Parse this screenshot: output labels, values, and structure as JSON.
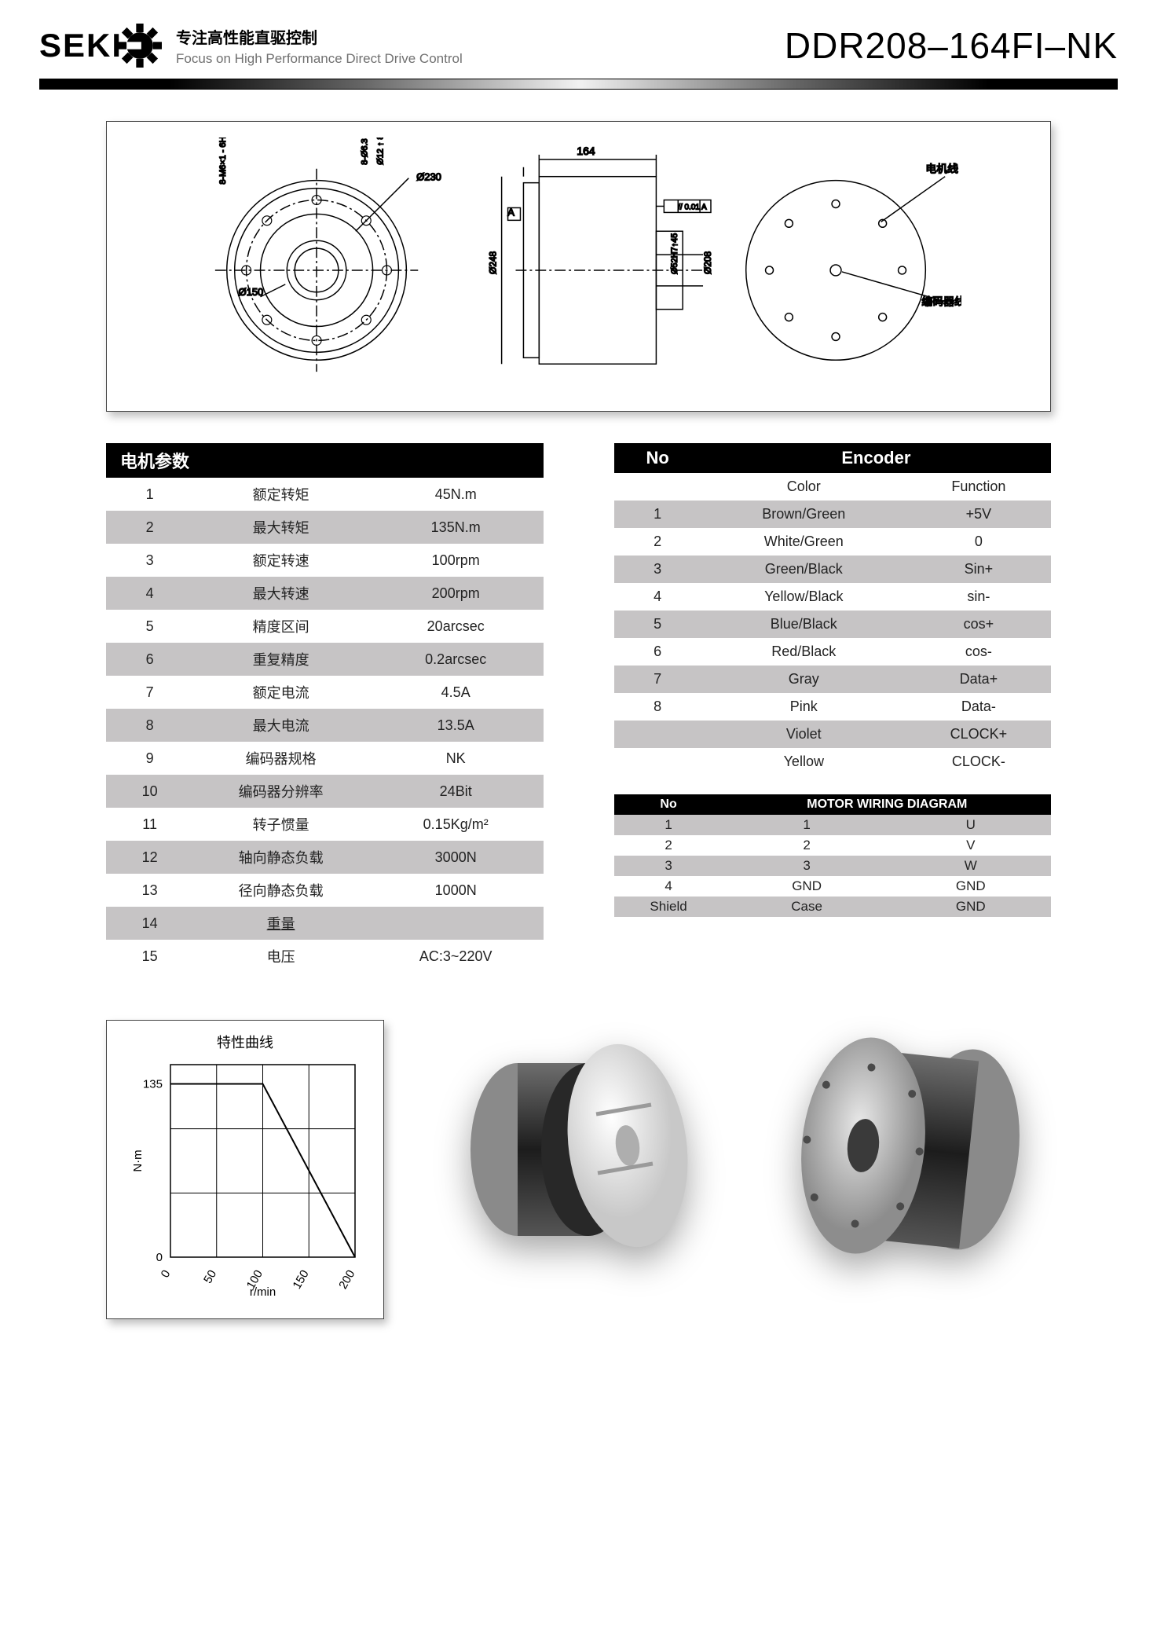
{
  "header": {
    "logo_text": "SEKI",
    "slogan_cn": "专注高性能直驱控制",
    "slogan_en": "Focus on High Performance Direct Drive Control",
    "model": "DDR208–164FI–NK"
  },
  "drawing": {
    "length_label": "164",
    "dia_outer_label": "Ø230",
    "dia_inner_label": "Ø150",
    "dia_body_label": "Ø248",
    "dia_side_label": "Ø208",
    "tol_label": "// 0.01 A",
    "datum": "A",
    "bolt_note": "8-M6×1 - 6H↑17.1",
    "hole_note": "8-Ø6.3 通孔",
    "shaft_note": "Ø52H7↑45",
    "hub_note": "Ø12 ↑ 8",
    "cable_motor": "电机线",
    "cable_encoder": "编码器线"
  },
  "params": {
    "title": "电机参数",
    "rows": [
      {
        "n": "1",
        "name": "额定转矩",
        "val": "45N.m"
      },
      {
        "n": "2",
        "name": "最大转矩",
        "val": "135N.m"
      },
      {
        "n": "3",
        "name": "额定转速",
        "val": "100rpm"
      },
      {
        "n": "4",
        "name": "最大转速",
        "val": "200rpm"
      },
      {
        "n": "5",
        "name": "精度区间",
        "val": "20arcsec"
      },
      {
        "n": "6",
        "name": "重复精度",
        "val": "0.2arcsec"
      },
      {
        "n": "7",
        "name": "额定电流",
        "val": "4.5A"
      },
      {
        "n": "8",
        "name": "最大电流",
        "val": "13.5A"
      },
      {
        "n": "9",
        "name": "编码器规格",
        "val": "NK"
      },
      {
        "n": "10",
        "name": "编码器分辨率",
        "val": "24Bit"
      },
      {
        "n": "11",
        "name": "转子惯量",
        "val": "0.15Kg/m²"
      },
      {
        "n": "12",
        "name": "轴向静态负载",
        "val": "3000N"
      },
      {
        "n": "13",
        "name": "径向静态负载",
        "val": "1000N"
      },
      {
        "n": "14",
        "name": "重量",
        "val": "",
        "underline": true
      },
      {
        "n": "15",
        "name": "电压",
        "val": "AC:3~220V"
      }
    ]
  },
  "encoder": {
    "th_no": "No",
    "th_enc": "Encoder",
    "sub_color": "Color",
    "sub_func": "Function",
    "rows": [
      {
        "n": "1",
        "color": "Brown/Green",
        "func": "+5V"
      },
      {
        "n": "2",
        "color": "White/Green",
        "func": "0"
      },
      {
        "n": "3",
        "color": "Green/Black",
        "func": "Sin+"
      },
      {
        "n": "4",
        "color": "Yellow/Black",
        "func": "sin-"
      },
      {
        "n": "5",
        "color": "Blue/Black",
        "func": "cos+"
      },
      {
        "n": "6",
        "color": "Red/Black",
        "func": "cos-"
      },
      {
        "n": "7",
        "color": "Gray",
        "func": "Data+"
      },
      {
        "n": "8",
        "color": "Pink",
        "func": "Data-"
      },
      {
        "n": "",
        "color": "Violet",
        "func": "CLOCK+"
      },
      {
        "n": "",
        "color": "Yellow",
        "func": "CLOCK-"
      }
    ]
  },
  "wiring": {
    "th_no": "No",
    "th_title": "MOTOR WIRING DIAGRAM",
    "rows": [
      {
        "a": "1",
        "b": "1",
        "c": "U"
      },
      {
        "a": "2",
        "b": "2",
        "c": "V"
      },
      {
        "a": "3",
        "b": "3",
        "c": "W"
      },
      {
        "a": "4",
        "b": "GND",
        "c": "GND"
      },
      {
        "a": "Shield",
        "b": "Case",
        "c": "GND"
      }
    ]
  },
  "chart": {
    "title": "特性曲线",
    "y_label": "N·m",
    "x_label": "r/min",
    "y_ticks": [
      "0",
      "135"
    ],
    "x_ticks": [
      "0",
      "50",
      "100",
      "150",
      "200"
    ],
    "ylim": [
      0,
      150
    ],
    "xlim": [
      0,
      200
    ],
    "line": [
      [
        0,
        135
      ],
      [
        100,
        135
      ],
      [
        200,
        0
      ]
    ],
    "grid_color": "#000",
    "bg": "#ffffff",
    "stroke": "#000",
    "axis_fontsize": 15
  }
}
